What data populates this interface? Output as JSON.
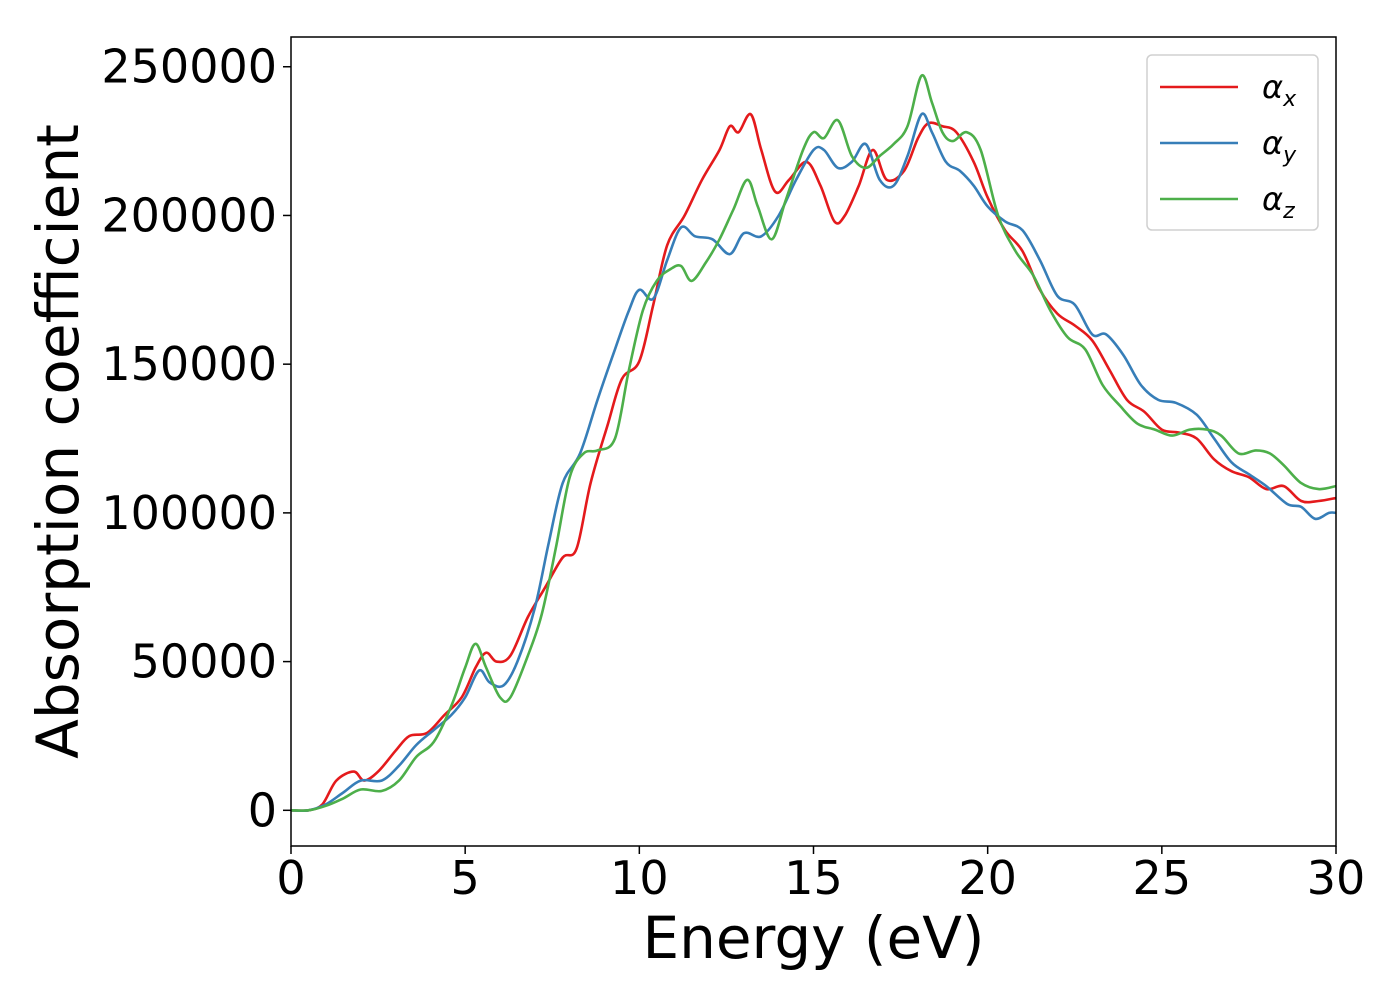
{
  "chart_data": {
    "type": "line",
    "xlabel": "Energy (eV)",
    "ylabel": "Absorption coefficient",
    "xlim": [
      0,
      30
    ],
    "ylim": [
      -12000,
      260000
    ],
    "xticks": [
      0,
      5,
      10,
      15,
      20,
      25,
      30
    ],
    "yticks": [
      0,
      50000,
      100000,
      150000,
      200000,
      250000
    ],
    "grid": false,
    "legend_position": "top-right",
    "series": [
      {
        "name": "α_x",
        "symbol": "α",
        "subscript": "x",
        "color": "#e41a1c",
        "points": [
          [
            0,
            0
          ],
          [
            0.5,
            0
          ],
          [
            0.9,
            2000
          ],
          [
            1.3,
            10000
          ],
          [
            1.8,
            13000
          ],
          [
            2.1,
            10000
          ],
          [
            2.5,
            13000
          ],
          [
            3.0,
            20000
          ],
          [
            3.4,
            25000
          ],
          [
            3.9,
            26000
          ],
          [
            4.4,
            32000
          ],
          [
            4.9,
            38000
          ],
          [
            5.3,
            48000
          ],
          [
            5.6,
            53000
          ],
          [
            5.9,
            50000
          ],
          [
            6.3,
            52000
          ],
          [
            6.8,
            65000
          ],
          [
            7.3,
            75000
          ],
          [
            7.8,
            85000
          ],
          [
            8.2,
            88000
          ],
          [
            8.6,
            110000
          ],
          [
            9.1,
            130000
          ],
          [
            9.5,
            145000
          ],
          [
            10.0,
            151000
          ],
          [
            10.4,
            170000
          ],
          [
            10.8,
            190000
          ],
          [
            11.3,
            200000
          ],
          [
            11.8,
            212000
          ],
          [
            12.3,
            222000
          ],
          [
            12.6,
            230000
          ],
          [
            12.85,
            228000
          ],
          [
            13.2,
            234000
          ],
          [
            13.5,
            222000
          ],
          [
            13.9,
            208000
          ],
          [
            14.3,
            212000
          ],
          [
            14.8,
            218000
          ],
          [
            15.2,
            210000
          ],
          [
            15.6,
            198000
          ],
          [
            15.9,
            200000
          ],
          [
            16.3,
            210000
          ],
          [
            16.7,
            222000
          ],
          [
            17.1,
            212000
          ],
          [
            17.6,
            215000
          ],
          [
            18.0,
            226000
          ],
          [
            18.3,
            231000
          ],
          [
            18.7,
            230000
          ],
          [
            19.1,
            228000
          ],
          [
            19.6,
            218000
          ],
          [
            20.0,
            206000
          ],
          [
            20.5,
            195000
          ],
          [
            21.0,
            188000
          ],
          [
            21.5,
            175000
          ],
          [
            22.0,
            167000
          ],
          [
            22.5,
            163000
          ],
          [
            23.0,
            158000
          ],
          [
            23.5,
            148000
          ],
          [
            24.0,
            138000
          ],
          [
            24.5,
            134000
          ],
          [
            25.0,
            128000
          ],
          [
            25.5,
            127000
          ],
          [
            26.0,
            125000
          ],
          [
            26.5,
            118000
          ],
          [
            27.0,
            114000
          ],
          [
            27.5,
            112000
          ],
          [
            28.0,
            108000
          ],
          [
            28.5,
            109000
          ],
          [
            29.0,
            104000
          ],
          [
            29.5,
            104000
          ],
          [
            30.0,
            105000
          ]
        ]
      },
      {
        "name": "α_y",
        "symbol": "α",
        "subscript": "y",
        "color": "#377eb8",
        "points": [
          [
            0,
            0
          ],
          [
            0.5,
            0
          ],
          [
            1.0,
            2000
          ],
          [
            1.5,
            6000
          ],
          [
            2.0,
            10000
          ],
          [
            2.6,
            10000
          ],
          [
            3.1,
            15000
          ],
          [
            3.6,
            22000
          ],
          [
            4.1,
            27000
          ],
          [
            4.6,
            32000
          ],
          [
            5.0,
            38000
          ],
          [
            5.4,
            47000
          ],
          [
            5.7,
            43000
          ],
          [
            6.1,
            42000
          ],
          [
            6.5,
            50000
          ],
          [
            7.0,
            68000
          ],
          [
            7.4,
            90000
          ],
          [
            7.8,
            110000
          ],
          [
            8.3,
            120000
          ],
          [
            8.8,
            138000
          ],
          [
            9.3,
            155000
          ],
          [
            9.7,
            168000
          ],
          [
            10.0,
            175000
          ],
          [
            10.4,
            172000
          ],
          [
            10.8,
            185000
          ],
          [
            11.2,
            196000
          ],
          [
            11.6,
            193000
          ],
          [
            12.1,
            192000
          ],
          [
            12.6,
            187000
          ],
          [
            13.0,
            194000
          ],
          [
            13.5,
            193000
          ],
          [
            14.0,
            200000
          ],
          [
            14.5,
            212000
          ],
          [
            15.0,
            222000
          ],
          [
            15.3,
            222000
          ],
          [
            15.7,
            216000
          ],
          [
            16.1,
            218000
          ],
          [
            16.5,
            224000
          ],
          [
            16.9,
            212000
          ],
          [
            17.3,
            210000
          ],
          [
            17.7,
            220000
          ],
          [
            18.1,
            234000
          ],
          [
            18.4,
            228000
          ],
          [
            18.8,
            218000
          ],
          [
            19.2,
            215000
          ],
          [
            19.6,
            210000
          ],
          [
            20.0,
            203000
          ],
          [
            20.5,
            198000
          ],
          [
            21.0,
            195000
          ],
          [
            21.5,
            185000
          ],
          [
            22.0,
            173000
          ],
          [
            22.5,
            170000
          ],
          [
            23.0,
            160000
          ],
          [
            23.4,
            160000
          ],
          [
            23.9,
            153000
          ],
          [
            24.4,
            143000
          ],
          [
            24.9,
            138000
          ],
          [
            25.4,
            137000
          ],
          [
            26.0,
            133000
          ],
          [
            26.5,
            125000
          ],
          [
            27.0,
            117000
          ],
          [
            27.5,
            113000
          ],
          [
            28.0,
            109000
          ],
          [
            28.6,
            103000
          ],
          [
            29.0,
            102000
          ],
          [
            29.4,
            98000
          ],
          [
            29.8,
            100000
          ],
          [
            30.0,
            100000
          ]
        ]
      },
      {
        "name": "α_z",
        "symbol": "α",
        "subscript": "z",
        "color": "#4daf4a",
        "points": [
          [
            0,
            0
          ],
          [
            0.5,
            0
          ],
          [
            1.0,
            1500
          ],
          [
            1.5,
            4000
          ],
          [
            2.0,
            7000
          ],
          [
            2.6,
            6500
          ],
          [
            3.1,
            10000
          ],
          [
            3.6,
            18000
          ],
          [
            4.1,
            23000
          ],
          [
            4.6,
            35000
          ],
          [
            5.0,
            48000
          ],
          [
            5.3,
            56000
          ],
          [
            5.6,
            48000
          ],
          [
            6.0,
            38000
          ],
          [
            6.3,
            38000
          ],
          [
            6.8,
            52000
          ],
          [
            7.2,
            66000
          ],
          [
            7.6,
            88000
          ],
          [
            8.0,
            112000
          ],
          [
            8.4,
            120000
          ],
          [
            8.8,
            121000
          ],
          [
            9.3,
            125000
          ],
          [
            9.7,
            148000
          ],
          [
            10.1,
            168000
          ],
          [
            10.5,
            178000
          ],
          [
            10.9,
            182000
          ],
          [
            11.2,
            183000
          ],
          [
            11.5,
            178000
          ],
          [
            11.9,
            184000
          ],
          [
            12.3,
            192000
          ],
          [
            12.7,
            202000
          ],
          [
            13.1,
            212000
          ],
          [
            13.4,
            203000
          ],
          [
            13.8,
            192000
          ],
          [
            14.2,
            205000
          ],
          [
            14.7,
            222000
          ],
          [
            15.0,
            228000
          ],
          [
            15.3,
            226000
          ],
          [
            15.7,
            232000
          ],
          [
            16.1,
            220000
          ],
          [
            16.5,
            216000
          ],
          [
            16.9,
            220000
          ],
          [
            17.3,
            224000
          ],
          [
            17.7,
            230000
          ],
          [
            18.1,
            247000
          ],
          [
            18.4,
            238000
          ],
          [
            18.7,
            228000
          ],
          [
            19.0,
            225000
          ],
          [
            19.4,
            228000
          ],
          [
            19.8,
            222000
          ],
          [
            20.3,
            200000
          ],
          [
            20.8,
            188000
          ],
          [
            21.3,
            180000
          ],
          [
            21.8,
            168000
          ],
          [
            22.3,
            159000
          ],
          [
            22.8,
            155000
          ],
          [
            23.3,
            143000
          ],
          [
            23.8,
            136000
          ],
          [
            24.3,
            130000
          ],
          [
            24.8,
            128000
          ],
          [
            25.3,
            126000
          ],
          [
            25.8,
            128000
          ],
          [
            26.3,
            128000
          ],
          [
            26.7,
            126000
          ],
          [
            27.2,
            120000
          ],
          [
            27.7,
            121000
          ],
          [
            28.1,
            120000
          ],
          [
            28.5,
            116000
          ],
          [
            29.0,
            110000
          ],
          [
            29.5,
            108000
          ],
          [
            30.0,
            109000
          ]
        ]
      }
    ]
  }
}
